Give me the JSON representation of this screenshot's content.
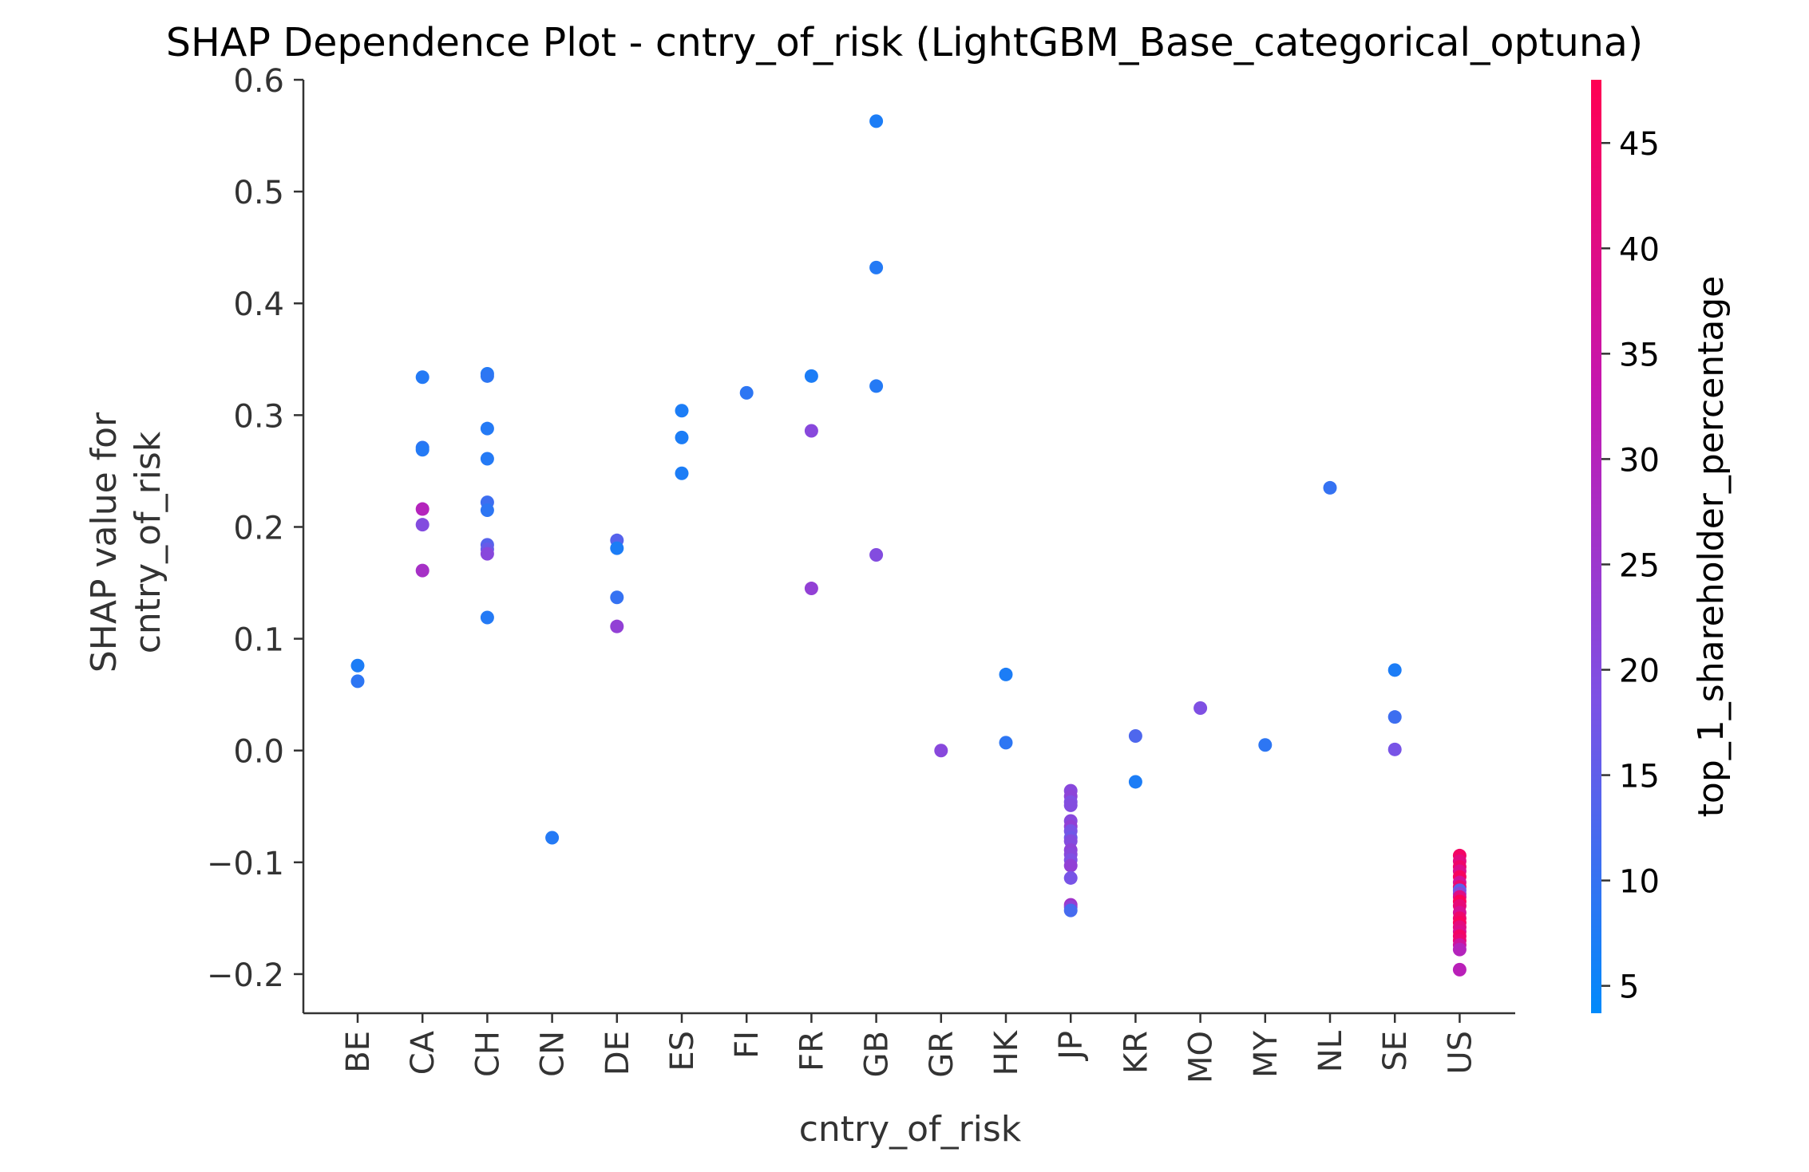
{
  "chart_data": {
    "type": "scatter",
    "title": "SHAP Dependence Plot - cntry_of_risk (LightGBM_Base_categorical_optuna)",
    "xlabel": "cntry_of_risk",
    "ylabel_lines": [
      "SHAP value for",
      "cntry_of_risk"
    ],
    "categories": [
      "BE",
      "CA",
      "CH",
      "CN",
      "DE",
      "ES",
      "FI",
      "FR",
      "GB",
      "GR",
      "HK",
      "JP",
      "KR",
      "MO",
      "MY",
      "NL",
      "SE",
      "US"
    ],
    "ylim": [
      -0.235,
      0.6
    ],
    "yticks": [
      -0.2,
      -0.1,
      0.0,
      0.1,
      0.2,
      0.3,
      0.4,
      0.5,
      0.6
    ],
    "ytick_labels": [
      "−0.2",
      "−0.1",
      "0.0",
      "0.1",
      "0.2",
      "0.3",
      "0.4",
      "0.5",
      "0.6"
    ],
    "colorbar": {
      "label": "top_1_shareholder_percentage",
      "range": [
        3.7,
        48
      ],
      "ticks": [
        5,
        10,
        15,
        20,
        25,
        30,
        35,
        40,
        45
      ],
      "tick_labels": [
        "5",
        "10",
        "15",
        "20",
        "25",
        "30",
        "35",
        "40",
        "45"
      ],
      "colors": [
        "#008afb",
        "#7c52e5",
        "#c417b0",
        "#ff0052"
      ]
    },
    "grid": false,
    "points": [
      {
        "cat": "BE",
        "y": 0.076,
        "c": 7
      },
      {
        "cat": "BE",
        "y": 0.062,
        "c": 9
      },
      {
        "cat": "CA",
        "y": 0.334,
        "c": 8
      },
      {
        "cat": "CA",
        "y": 0.271,
        "c": 9
      },
      {
        "cat": "CA",
        "y": 0.269,
        "c": 8
      },
      {
        "cat": "CA",
        "y": 0.216,
        "c": 30
      },
      {
        "cat": "CA",
        "y": 0.202,
        "c": 20
      },
      {
        "cat": "CA",
        "y": 0.161,
        "c": 27
      },
      {
        "cat": "CH",
        "y": 0.337,
        "c": 8
      },
      {
        "cat": "CH",
        "y": 0.335,
        "c": 9
      },
      {
        "cat": "CH",
        "y": 0.288,
        "c": 8
      },
      {
        "cat": "CH",
        "y": 0.261,
        "c": 8
      },
      {
        "cat": "CH",
        "y": 0.222,
        "c": 11
      },
      {
        "cat": "CH",
        "y": 0.215,
        "c": 9
      },
      {
        "cat": "CH",
        "y": 0.184,
        "c": 14
      },
      {
        "cat": "CH",
        "y": 0.18,
        "c": 16
      },
      {
        "cat": "CH",
        "y": 0.176,
        "c": 21
      },
      {
        "cat": "CH",
        "y": 0.119,
        "c": 8
      },
      {
        "cat": "CN",
        "y": -0.078,
        "c": 8
      },
      {
        "cat": "DE",
        "y": 0.188,
        "c": 14
      },
      {
        "cat": "DE",
        "y": 0.181,
        "c": 7
      },
      {
        "cat": "DE",
        "y": 0.137,
        "c": 10
      },
      {
        "cat": "DE",
        "y": 0.111,
        "c": 23
      },
      {
        "cat": "ES",
        "y": 0.304,
        "c": 7
      },
      {
        "cat": "ES",
        "y": 0.28,
        "c": 7
      },
      {
        "cat": "ES",
        "y": 0.248,
        "c": 7
      },
      {
        "cat": "FI",
        "y": 0.32,
        "c": 9
      },
      {
        "cat": "FR",
        "y": 0.335,
        "c": 7
      },
      {
        "cat": "FR",
        "y": 0.286,
        "c": 21
      },
      {
        "cat": "FR",
        "y": 0.145,
        "c": 23
      },
      {
        "cat": "GB",
        "y": 0.563,
        "c": 7
      },
      {
        "cat": "GB",
        "y": 0.432,
        "c": 8
      },
      {
        "cat": "GB",
        "y": 0.326,
        "c": 8
      },
      {
        "cat": "GB",
        "y": 0.175,
        "c": 20
      },
      {
        "cat": "GR",
        "y": 0.0,
        "c": 21
      },
      {
        "cat": "HK",
        "y": 0.068,
        "c": 7
      },
      {
        "cat": "HK",
        "y": 0.007,
        "c": 9
      },
      {
        "cat": "JP",
        "y": -0.036,
        "c": 21
      },
      {
        "cat": "JP",
        "y": -0.041,
        "c": 22
      },
      {
        "cat": "JP",
        "y": -0.046,
        "c": 19
      },
      {
        "cat": "JP",
        "y": -0.049,
        "c": 20
      },
      {
        "cat": "JP",
        "y": -0.063,
        "c": 21
      },
      {
        "cat": "JP",
        "y": -0.068,
        "c": 23
      },
      {
        "cat": "JP",
        "y": -0.072,
        "c": 18
      },
      {
        "cat": "JP",
        "y": -0.078,
        "c": 17
      },
      {
        "cat": "JP",
        "y": -0.081,
        "c": 20
      },
      {
        "cat": "JP",
        "y": -0.089,
        "c": 22
      },
      {
        "cat": "JP",
        "y": -0.093,
        "c": 21
      },
      {
        "cat": "JP",
        "y": -0.098,
        "c": 19
      },
      {
        "cat": "JP",
        "y": -0.103,
        "c": 23
      },
      {
        "cat": "JP",
        "y": -0.114,
        "c": 18
      },
      {
        "cat": "JP",
        "y": -0.138,
        "c": 26
      },
      {
        "cat": "JP",
        "y": -0.14,
        "c": 23
      },
      {
        "cat": "JP",
        "y": -0.143,
        "c": 12
      },
      {
        "cat": "KR",
        "y": 0.013,
        "c": 13
      },
      {
        "cat": "KR",
        "y": -0.028,
        "c": 7
      },
      {
        "cat": "MO",
        "y": 0.038,
        "c": 19
      },
      {
        "cat": "MY",
        "y": 0.005,
        "c": 9
      },
      {
        "cat": "NL",
        "y": 0.235,
        "c": 10
      },
      {
        "cat": "SE",
        "y": 0.072,
        "c": 7
      },
      {
        "cat": "SE",
        "y": 0.03,
        "c": 11
      },
      {
        "cat": "SE",
        "y": 0.001,
        "c": 18
      },
      {
        "cat": "US",
        "y": -0.094,
        "c": 45
      },
      {
        "cat": "US",
        "y": -0.099,
        "c": 41
      },
      {
        "cat": "US",
        "y": -0.104,
        "c": 44
      },
      {
        "cat": "US",
        "y": -0.108,
        "c": 39
      },
      {
        "cat": "US",
        "y": -0.113,
        "c": 46
      },
      {
        "cat": "US",
        "y": -0.118,
        "c": 37
      },
      {
        "cat": "US",
        "y": -0.122,
        "c": 43
      },
      {
        "cat": "US",
        "y": -0.125,
        "c": 15
      },
      {
        "cat": "US",
        "y": -0.128,
        "c": 22
      },
      {
        "cat": "US",
        "y": -0.131,
        "c": 40
      },
      {
        "cat": "US",
        "y": -0.135,
        "c": 47
      },
      {
        "cat": "US",
        "y": -0.139,
        "c": 42
      },
      {
        "cat": "US",
        "y": -0.145,
        "c": 38
      },
      {
        "cat": "US",
        "y": -0.15,
        "c": 44
      },
      {
        "cat": "US",
        "y": -0.154,
        "c": 46
      },
      {
        "cat": "US",
        "y": -0.158,
        "c": 41
      },
      {
        "cat": "US",
        "y": -0.162,
        "c": 39
      },
      {
        "cat": "US",
        "y": -0.166,
        "c": 45
      },
      {
        "cat": "US",
        "y": -0.17,
        "c": 43
      },
      {
        "cat": "US",
        "y": -0.174,
        "c": 36
      },
      {
        "cat": "US",
        "y": -0.178,
        "c": 30
      },
      {
        "cat": "US",
        "y": -0.196,
        "c": 31
      }
    ]
  }
}
